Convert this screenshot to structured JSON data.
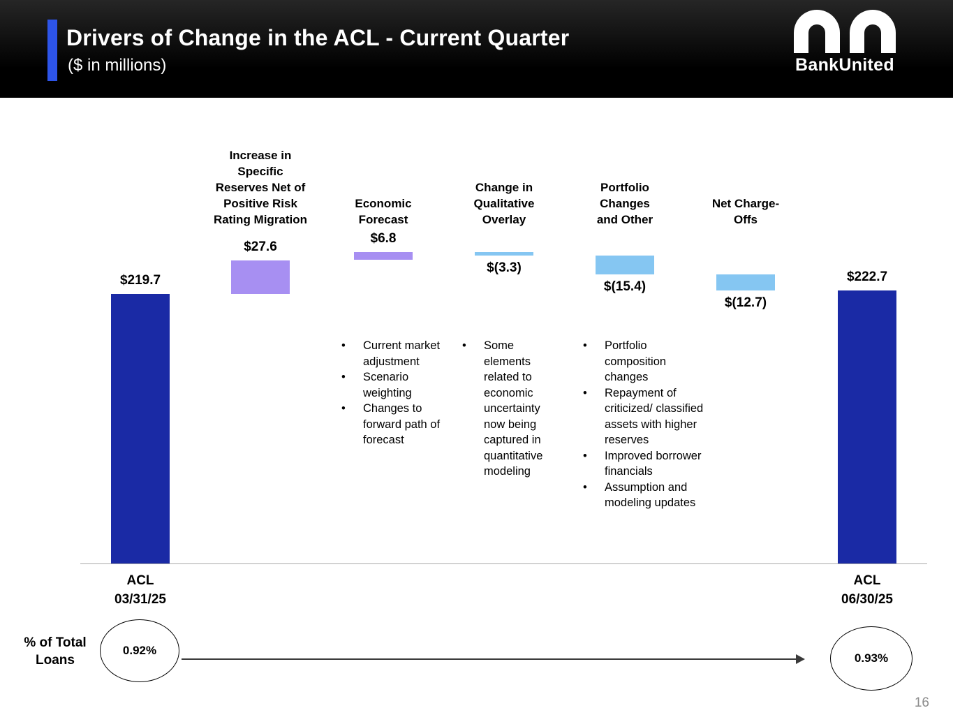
{
  "header": {
    "title": "Drivers of Change in the ACL - Current Quarter",
    "subtitle": "($ in millions)",
    "logo_text": "BankUnited",
    "accent_color": "#2d54e8"
  },
  "chart_data": {
    "type": "waterfall",
    "title": "Drivers of Change in the ACL - Current Quarter ($ in millions)",
    "unit": "USD millions",
    "baseline": 0,
    "colors": {
      "total": "#1a2aa5",
      "increase": "#a78ff2",
      "decrease": "#85c6f2"
    },
    "steps": [
      {
        "kind": "total",
        "value": 219.7,
        "display": "$219.7",
        "header": "",
        "axis_label": "ACL\n03/31/25"
      },
      {
        "kind": "increase",
        "value": 27.6,
        "display": "$27.6",
        "header": "Increase in\nSpecific\nReserves Net of\nPositive Risk\nRating Migration"
      },
      {
        "kind": "increase",
        "value": 6.8,
        "display": "$6.8",
        "header": "Economic\nForecast",
        "bullets": [
          "Current market adjustment",
          "Scenario weighting",
          "Changes to forward path of forecast"
        ]
      },
      {
        "kind": "decrease",
        "value": -3.3,
        "display": "$(3.3)",
        "header": "Change in\nQualitative\nOverlay",
        "bullets": [
          "Some elements related to economic uncertainty now being captured in quantitative modeling"
        ]
      },
      {
        "kind": "decrease",
        "value": -15.4,
        "display": "$(15.4)",
        "header": "Portfolio\nChanges\nand Other",
        "bullets": [
          "Portfolio composition changes",
          "Repayment of criticized/ classified assets with higher reserves",
          "Improved borrower financials",
          "Assumption and modeling updates"
        ]
      },
      {
        "kind": "decrease",
        "value": -12.7,
        "display": "$(12.7)",
        "header": "Net Charge-\nOffs"
      },
      {
        "kind": "total",
        "value": 222.7,
        "display": "$222.7",
        "header": "",
        "axis_label": "ACL\n06/30/25"
      }
    ]
  },
  "footer": {
    "left_label": "% of Total\nLoans",
    "start_value": "0.92%",
    "end_value": "0.93%",
    "page_number": "16"
  }
}
